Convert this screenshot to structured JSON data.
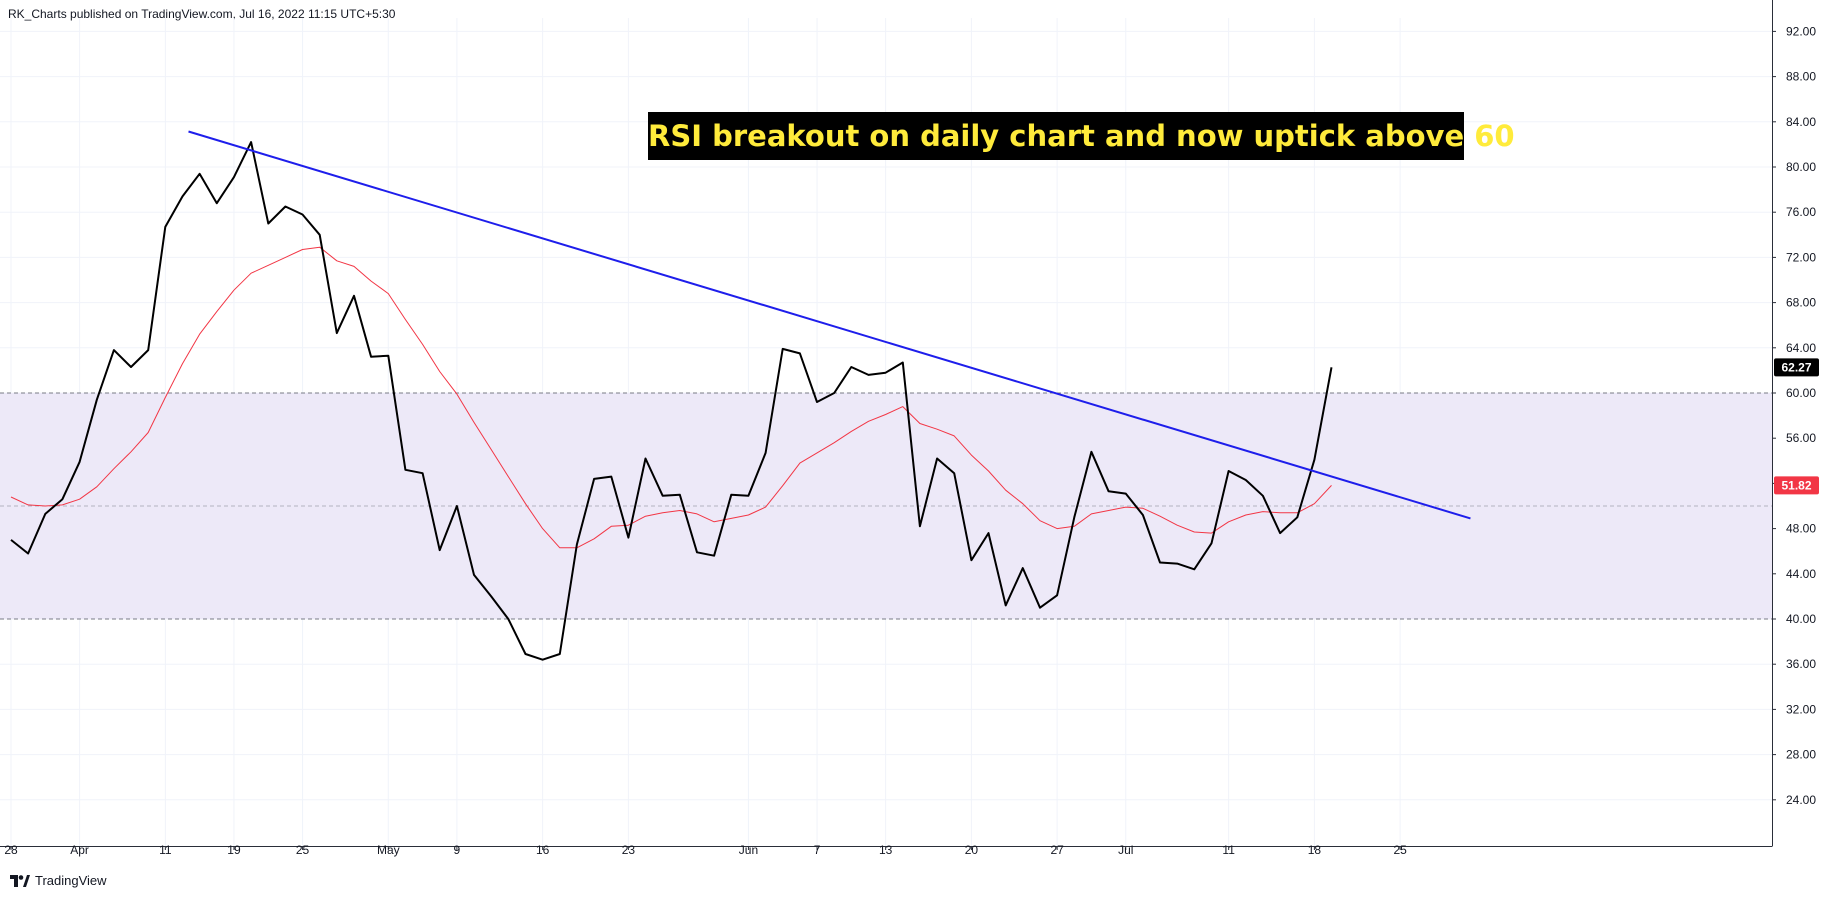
{
  "header": {
    "text": "RK_Charts published on TradingView.com, Jul 16, 2022 11:15 UTC+5:30"
  },
  "footer": {
    "brand": "TradingView"
  },
  "chart_data": {
    "type": "line",
    "annotation": "RSI breakout on daily chart and now uptick above 60",
    "y_axis": {
      "ticks": [
        "92.00",
        "88.00",
        "84.00",
        "80.00",
        "76.00",
        "72.00",
        "68.00",
        "64.00",
        "60.00",
        "56.00",
        "52.00",
        "48.00",
        "44.00",
        "40.00",
        "36.00",
        "32.00",
        "28.00",
        "24.00"
      ]
    },
    "x_axis": {
      "ticks": [
        {
          "label": "28",
          "i": 0
        },
        {
          "label": "Apr",
          "i": 4
        },
        {
          "label": "11",
          "i": 9
        },
        {
          "label": "19",
          "i": 13
        },
        {
          "label": "25",
          "i": 17
        },
        {
          "label": "May",
          "i": 22
        },
        {
          "label": "9",
          "i": 26
        },
        {
          "label": "16",
          "i": 31
        },
        {
          "label": "23",
          "i": 36
        },
        {
          "label": "Jun",
          "i": 43
        },
        {
          "label": "7",
          "i": 47
        },
        {
          "label": "13",
          "i": 51
        },
        {
          "label": "20",
          "i": 56
        },
        {
          "label": "27",
          "i": 61
        },
        {
          "label": "Jul",
          "i": 65
        },
        {
          "label": "11",
          "i": 71
        },
        {
          "label": "18",
          "i": 76
        },
        {
          "label": "25",
          "i": 81
        }
      ]
    },
    "ylim": [
      21.5,
      93.5
    ],
    "band": {
      "upper": 60,
      "middle": 50,
      "lower": 40,
      "fill": "#ede9f8"
    },
    "series": [
      {
        "color": "#000000",
        "values": [
          47.0,
          45.8,
          49.3,
          50.6,
          53.9,
          59.4,
          63.8,
          62.3,
          63.8,
          74.7,
          77.4,
          79.4,
          76.8,
          79.1,
          82.2,
          75.0,
          76.5,
          75.8,
          74.0,
          65.3,
          68.6,
          63.2,
          63.3,
          53.2,
          52.9,
          46.1,
          50.0,
          43.9,
          42.0,
          40.0,
          36.9,
          36.4,
          36.9,
          46.6,
          52.4,
          52.6,
          47.2,
          54.2,
          50.9,
          51.0,
          45.9,
          45.6,
          51.0,
          50.9,
          54.7,
          63.9,
          63.5,
          59.2,
          60.0,
          62.3,
          61.6,
          61.8,
          62.7,
          48.2,
          54.2,
          52.9,
          45.2,
          47.6,
          41.2,
          44.5,
          41.0,
          42.1,
          49.0,
          54.8,
          51.3,
          51.1,
          49.2,
          45.0,
          44.9,
          44.4,
          46.7,
          53.1,
          52.3,
          50.9,
          47.6,
          49.0,
          54.1,
          62.27
        ],
        "last_value": "62.27"
      },
      {
        "color": "#f23645",
        "values": [
          50.8,
          50.1,
          50.0,
          50.1,
          50.6,
          51.7,
          53.3,
          54.8,
          56.5,
          59.6,
          62.6,
          65.2,
          67.2,
          69.1,
          70.6,
          71.3,
          72.0,
          72.7,
          72.9,
          71.7,
          71.2,
          69.9,
          68.8,
          66.5,
          64.3,
          61.9,
          59.9,
          57.4,
          55.0,
          52.6,
          50.2,
          48.0,
          46.3,
          46.3,
          47.1,
          48.2,
          48.3,
          49.1,
          49.4,
          49.6,
          49.3,
          48.6,
          48.9,
          49.2,
          49.9,
          51.8,
          53.8,
          54.7,
          55.6,
          56.6,
          57.5,
          58.1,
          58.8,
          57.3,
          56.8,
          56.2,
          54.5,
          53.1,
          51.4,
          50.2,
          48.7,
          48.0,
          48.2,
          49.3,
          49.6,
          49.9,
          49.8,
          49.1,
          48.3,
          47.7,
          47.6,
          48.6,
          49.2,
          49.5,
          49.4,
          49.4,
          50.2,
          51.82
        ],
        "last_value": "51.82"
      }
    ],
    "trendline": {
      "color": "#1e1eeb",
      "from": {
        "i": 10.35,
        "y": 83.14
      },
      "to": {
        "i": 85.1,
        "y": 48.9
      }
    }
  }
}
